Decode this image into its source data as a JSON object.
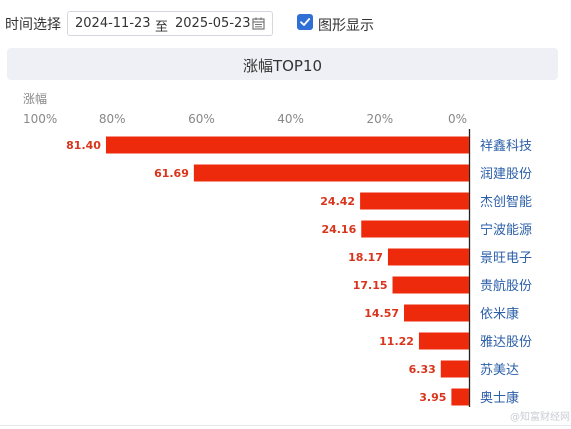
{
  "filter": {
    "label": "时间选择",
    "start_date": "2024-11-23",
    "separator": "至",
    "end_date": "2025-05-23",
    "show_chart_label": "图形显示",
    "show_chart_checked": true
  },
  "panel": {
    "title": "涨幅TOP10"
  },
  "watermark": "@知富财经网",
  "colors": {
    "bar": "#ee2a0c",
    "value_text": "#d8351c",
    "name_text": "#2b5fa8",
    "accent": "#2f6fd6"
  },
  "chart_data": {
    "type": "bar",
    "orientation": "horizontal",
    "axis_direction": "reversed",
    "ylabel": "涨幅",
    "xlim": [
      0,
      100
    ],
    "ticks": [
      "100%",
      "80%",
      "60%",
      "40%",
      "20%",
      "0%"
    ],
    "tick_values": [
      100,
      80,
      60,
      40,
      20,
      0
    ],
    "categories": [
      "祥鑫科技",
      "润建股份",
      "杰创智能",
      "宁波能源",
      "景旺电子",
      "贵航股份",
      "依米康",
      "雅达股份",
      "苏美达",
      "奥士康"
    ],
    "values": [
      81.4,
      61.69,
      24.42,
      24.16,
      18.17,
      17.15,
      14.57,
      11.22,
      6.33,
      3.95
    ],
    "value_labels": [
      "81.40",
      "61.69",
      "24.42",
      "24.16",
      "18.17",
      "17.15",
      "14.57",
      "11.22",
      "6.33",
      "3.95"
    ]
  }
}
